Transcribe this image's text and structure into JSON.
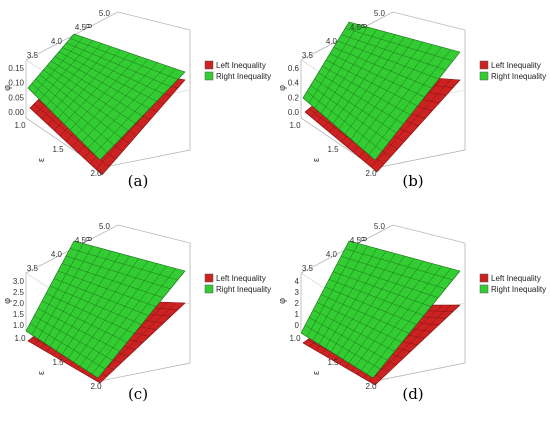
{
  "figure": {
    "panels": [
      {
        "caption": "(a)",
        "legend": [
          "Left Inequality",
          "Right Inequality"
        ],
        "legend_colors": [
          "#cc2222",
          "#33cc33"
        ],
        "axis_labels": {
          "x": "ε",
          "y": "θ",
          "z": "φ"
        },
        "x_ticks": [
          "1.0",
          "1.5",
          "2.0"
        ],
        "y_ticks": [
          "3.5",
          "4.0",
          "4.5",
          "5.0"
        ],
        "z_ticks": [
          "0.00",
          "0.05",
          "0.10",
          "0.15"
        ]
      },
      {
        "caption": "(b)",
        "legend": [
          "Left Inequality",
          "Right Inequality"
        ],
        "legend_colors": [
          "#cc2222",
          "#33cc33"
        ],
        "axis_labels": {
          "x": "ε",
          "y": "θ",
          "z": "φ"
        },
        "x_ticks": [
          "1.0",
          "1.5",
          "2.0"
        ],
        "y_ticks": [
          "3.5",
          "4.0",
          "4.5",
          "5.0"
        ],
        "z_ticks": [
          "0.0",
          "0.2",
          "0.4",
          "0.6"
        ]
      },
      {
        "caption": "(c)",
        "legend": [
          "Left Inequality",
          "Right Inequality"
        ],
        "legend_colors": [
          "#cc2222",
          "#33cc33"
        ],
        "axis_labels": {
          "x": "ε",
          "y": "θ",
          "z": "φ"
        },
        "x_ticks": [
          "1.0",
          "1.5",
          "2.0"
        ],
        "y_ticks": [
          "3.5",
          "4.0",
          "4.5",
          "5.0"
        ],
        "z_ticks": [
          "1.0",
          "1.5",
          "2.0",
          "2.5",
          "3.0"
        ]
      },
      {
        "caption": "(d)",
        "legend": [
          "Left Inequality",
          "Right Inequality"
        ],
        "legend_colors": [
          "#cc2222",
          "#33cc33"
        ],
        "axis_labels": {
          "x": "ε",
          "y": "θ",
          "z": "φ"
        },
        "x_ticks": [
          "1.0",
          "1.5",
          "2.0"
        ],
        "y_ticks": [
          "3.5",
          "4.0",
          "4.5",
          "5.0"
        ],
        "z_ticks": [
          "0",
          "1",
          "2",
          "3",
          "4"
        ]
      }
    ]
  },
  "chart_data": [
    {
      "type": "surface3d",
      "title": "",
      "series": [
        {
          "name": "Left Inequality",
          "color": "#cc2222"
        },
        {
          "name": "Right Inequality",
          "color": "#33cc33"
        }
      ],
      "xlim": [
        1.0,
        2.0
      ],
      "ylim": [
        3.5,
        5.0
      ],
      "zlim": [
        0.0,
        0.15
      ],
      "grid": true,
      "legend_position": "right"
    },
    {
      "type": "surface3d",
      "title": "",
      "series": [
        {
          "name": "Left Inequality",
          "color": "#cc2222"
        },
        {
          "name": "Right Inequality",
          "color": "#33cc33"
        }
      ],
      "xlim": [
        1.0,
        2.0
      ],
      "ylim": [
        3.5,
        5.0
      ],
      "zlim": [
        0.0,
        0.6
      ],
      "grid": true,
      "legend_position": "right"
    },
    {
      "type": "surface3d",
      "title": "",
      "series": [
        {
          "name": "Left Inequality",
          "color": "#cc2222"
        },
        {
          "name": "Right Inequality",
          "color": "#33cc33"
        }
      ],
      "xlim": [
        1.0,
        2.0
      ],
      "ylim": [
        3.5,
        5.0
      ],
      "zlim": [
        1.0,
        3.0
      ],
      "grid": true,
      "legend_position": "right"
    },
    {
      "type": "surface3d",
      "title": "",
      "series": [
        {
          "name": "Left Inequality",
          "color": "#cc2222"
        },
        {
          "name": "Right Inequality",
          "color": "#33cc33"
        }
      ],
      "xlim": [
        1.0,
        2.0
      ],
      "ylim": [
        3.5,
        5.0
      ],
      "zlim": [
        0,
        4
      ],
      "grid": true,
      "legend_position": "right"
    }
  ]
}
